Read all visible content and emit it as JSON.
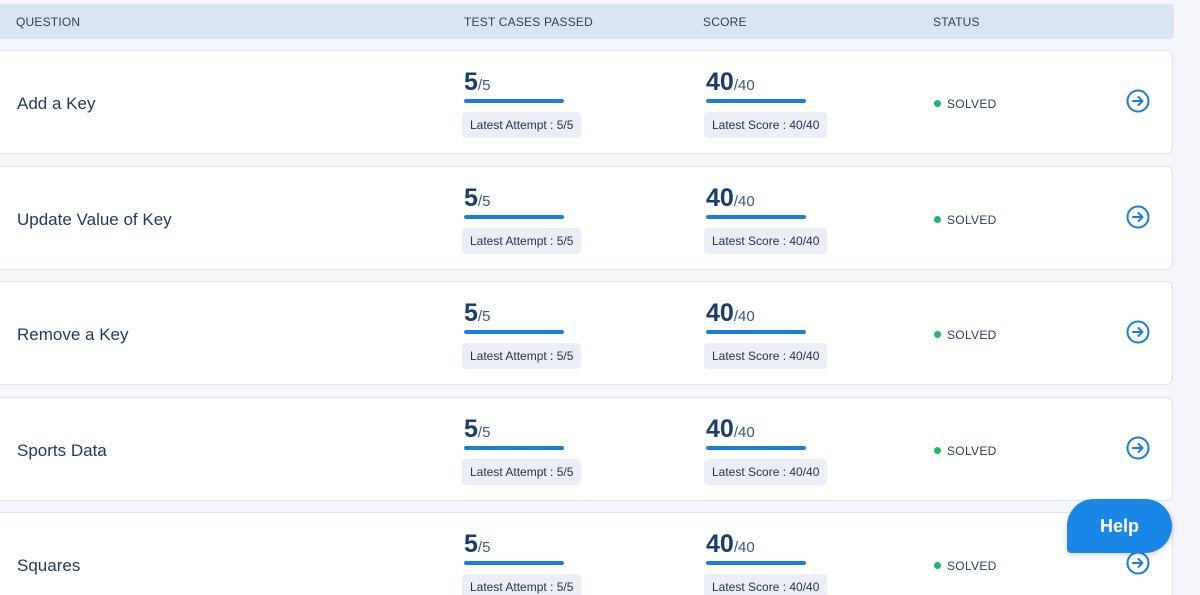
{
  "header": {
    "question": "QUESTION",
    "test_cases_passed": "TEST CASES PASSED",
    "score": "SCORE",
    "status": "STATUS"
  },
  "questions": [
    {
      "title": "Add a Key",
      "tests_passed": "5",
      "tests_total": "/5",
      "tests_fraction": 1.0,
      "latest_attempt": "Latest Attempt : 5/5",
      "score": "40",
      "score_total": "/40",
      "score_fraction": 1.0,
      "latest_score": "Latest Score : 40/40",
      "status": "SOLVED"
    },
    {
      "title": "Update Value of Key",
      "tests_passed": "5",
      "tests_total": "/5",
      "tests_fraction": 1.0,
      "latest_attempt": "Latest Attempt : 5/5",
      "score": "40",
      "score_total": "/40",
      "score_fraction": 1.0,
      "latest_score": "Latest Score : 40/40",
      "status": "SOLVED"
    },
    {
      "title": "Remove a Key",
      "tests_passed": "5",
      "tests_total": "/5",
      "tests_fraction": 1.0,
      "latest_attempt": "Latest Attempt : 5/5",
      "score": "40",
      "score_total": "/40",
      "score_fraction": 1.0,
      "latest_score": "Latest Score : 40/40",
      "status": "SOLVED"
    },
    {
      "title": "Sports Data",
      "tests_passed": "5",
      "tests_total": "/5",
      "tests_fraction": 1.0,
      "latest_attempt": "Latest Attempt : 5/5",
      "score": "40",
      "score_total": "/40",
      "score_fraction": 1.0,
      "latest_score": "Latest Score : 40/40",
      "status": "SOLVED"
    },
    {
      "title": "Squares",
      "tests_passed": "5",
      "tests_total": "/5",
      "tests_fraction": 1.0,
      "latest_attempt": "Latest Attempt : 5/5",
      "score": "40",
      "score_total": "/40",
      "score_fraction": 1.0,
      "latest_score": "Latest Score : 40/40",
      "status": "SOLVED"
    }
  ],
  "help": {
    "label": "Help"
  },
  "colors": {
    "accent": "#1a7ddb",
    "solved": "#1fb866",
    "help_bg": "#1a87e6"
  },
  "icons": {
    "row_action": "arrow-right-circle-icon",
    "status": "status-dot-icon"
  }
}
